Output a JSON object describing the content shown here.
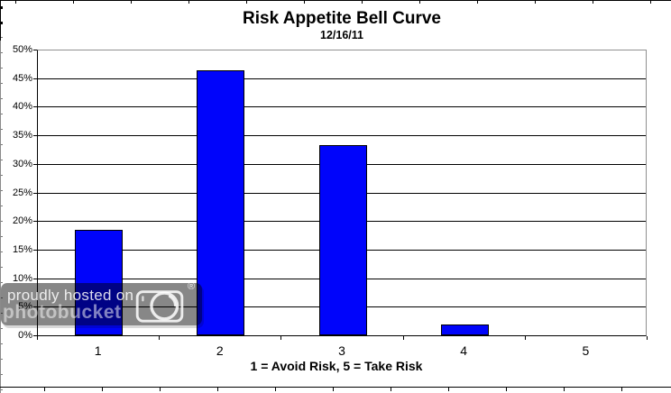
{
  "chart_data": {
    "type": "bar",
    "title": "Risk Appetite Bell Curve",
    "subtitle": "12/16/11",
    "categories": [
      "1",
      "2",
      "3",
      "4",
      "5"
    ],
    "values": [
      18.5,
      46.3,
      33.3,
      1.9,
      0
    ],
    "xlabel": "1 = Avoid Risk, 5 = Take Risk",
    "ylabel": "",
    "ylim": [
      0,
      50
    ],
    "ytick_step": 5,
    "yticks": [
      "0%",
      "5%",
      "10%",
      "15%",
      "20%",
      "25%",
      "30%",
      "35%",
      "40%",
      "45%",
      "50%"
    ],
    "grid": "horizontal-on",
    "legend": "none",
    "bar_color": "#0004fb",
    "bar_border_color": "#000000",
    "gridline_color": "#000000",
    "plot_border_color": "#909090"
  },
  "watermark": {
    "line1": "proudly hosted on",
    "line2": "photobucket",
    "registered": "®"
  }
}
